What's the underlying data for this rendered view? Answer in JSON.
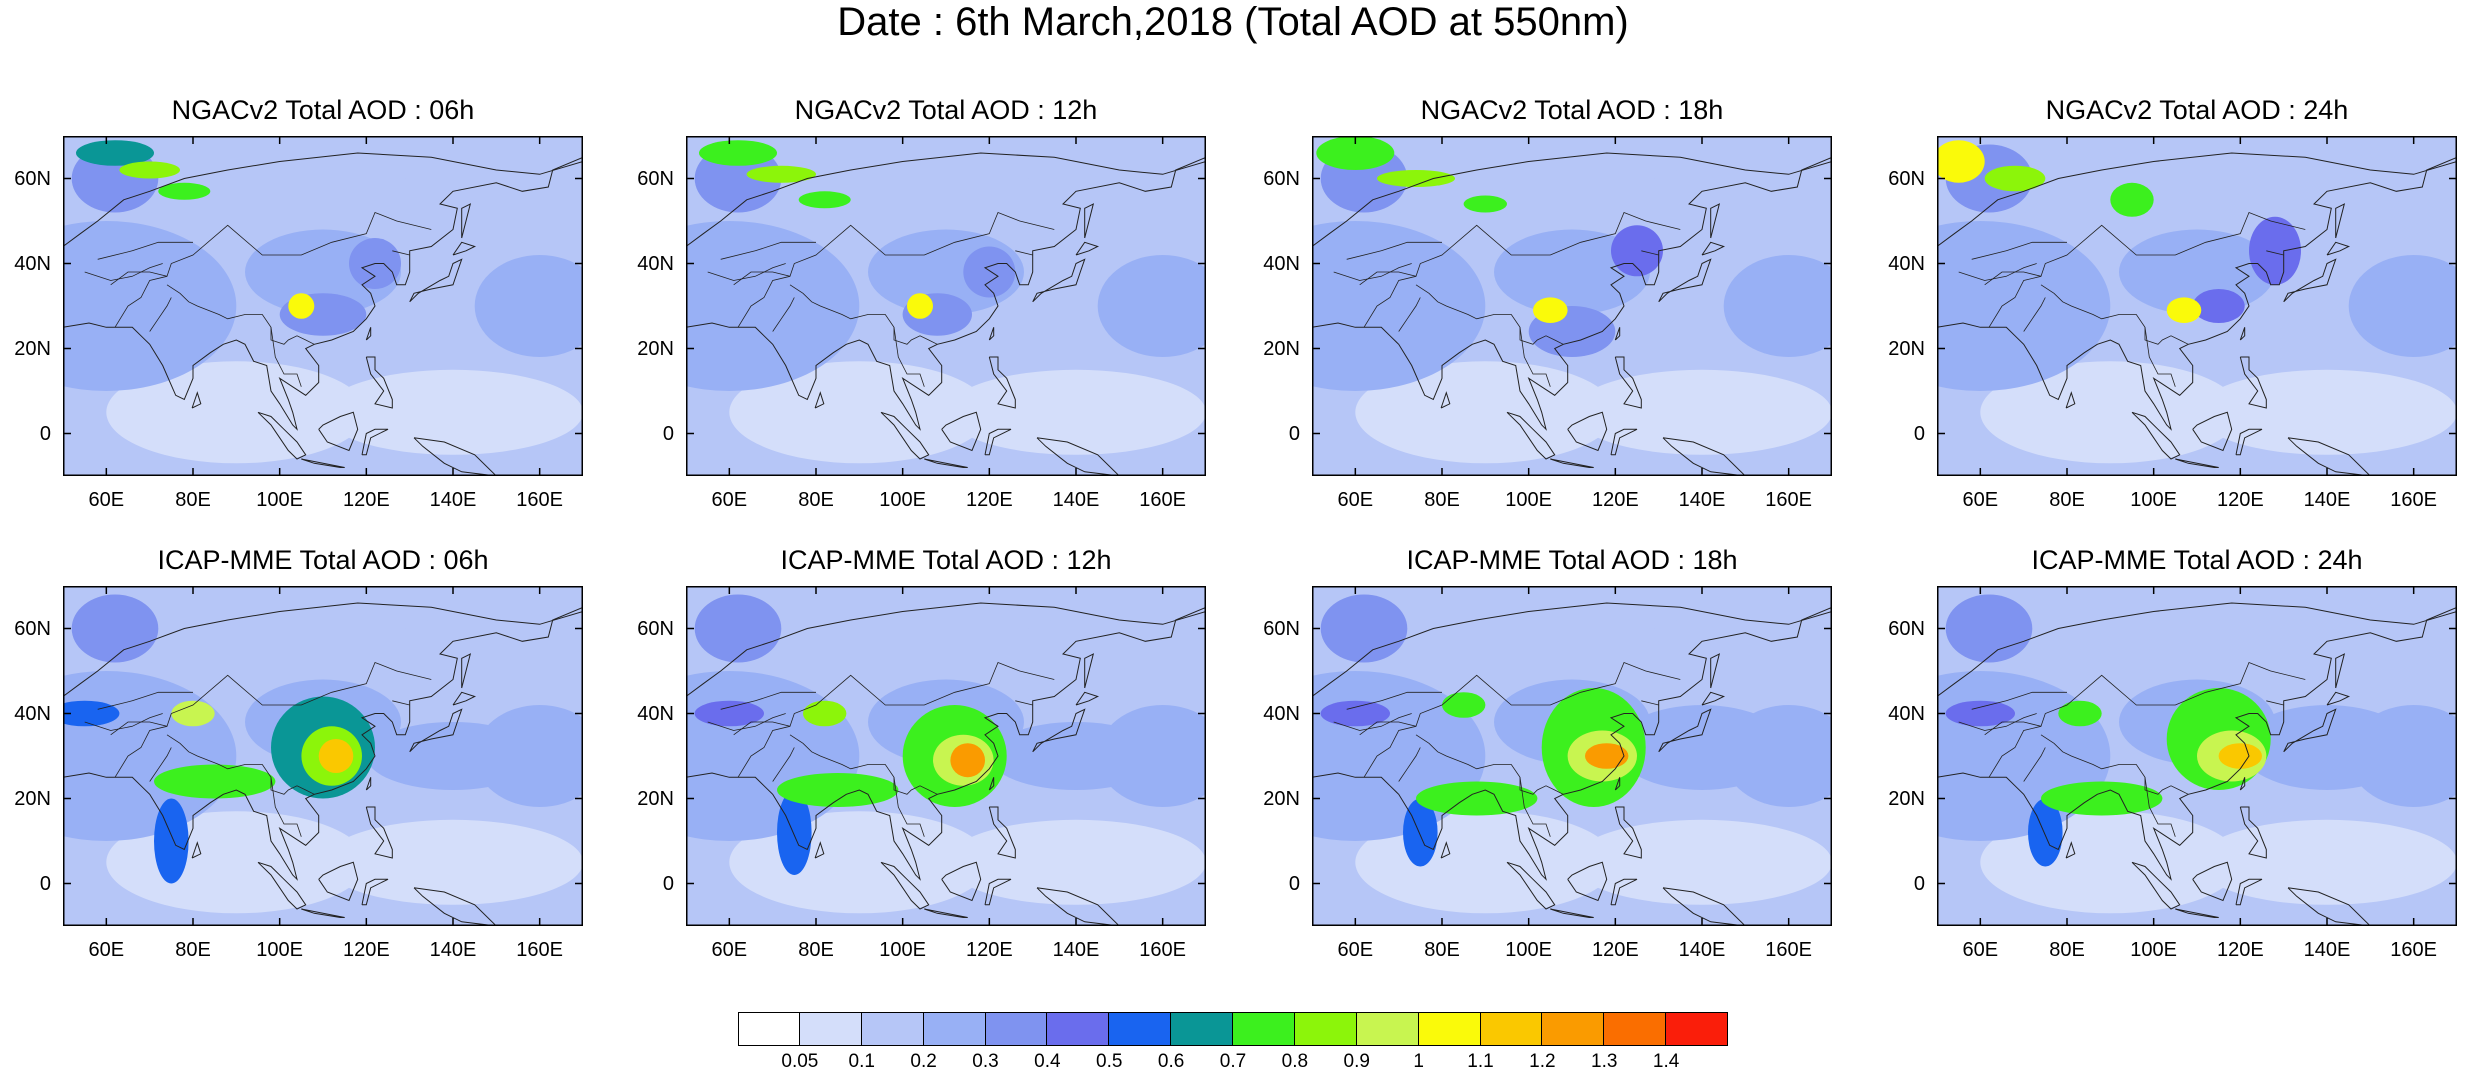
{
  "title": "Date : 6th March,2018 (Total AOD at 550nm)",
  "panels": [
    {
      "title": "NGACv2 Total AOD : 06h",
      "model": "NGACv2",
      "hour": "06h"
    },
    {
      "title": "NGACv2 Total AOD : 12h",
      "model": "NGACv2",
      "hour": "12h"
    },
    {
      "title": "NGACv2 Total AOD : 18h",
      "model": "NGACv2",
      "hour": "18h"
    },
    {
      "title": "NGACv2 Total AOD : 24h",
      "model": "NGACv2",
      "hour": "24h"
    },
    {
      "title": "ICAP-MME Total AOD : 06h",
      "model": "ICAP-MME",
      "hour": "06h"
    },
    {
      "title": "ICAP-MME Total AOD : 12h",
      "model": "ICAP-MME",
      "hour": "12h"
    },
    {
      "title": "ICAP-MME Total AOD : 18h",
      "model": "ICAP-MME",
      "hour": "18h"
    },
    {
      "title": "ICAP-MME Total AOD : 24h",
      "model": "ICAP-MME",
      "hour": "24h"
    }
  ],
  "axes": {
    "lat_labels": [
      "60N",
      "40N",
      "20N",
      "0"
    ],
    "lon_labels": [
      "60E",
      "80E",
      "100E",
      "120E",
      "140E",
      "160E"
    ],
    "lat_values": [
      60,
      40,
      20,
      0
    ],
    "lon_values": [
      60,
      80,
      100,
      120,
      140,
      160
    ],
    "lon_range": [
      50,
      170
    ],
    "lat_range": [
      -10,
      70
    ]
  },
  "colorbar": {
    "labels": [
      "0.05",
      "0.1",
      "0.2",
      "0.3",
      "0.4",
      "0.5",
      "0.6",
      "0.7",
      "0.8",
      "0.9",
      "1",
      "1.1",
      "1.2",
      "1.3",
      "1.4"
    ],
    "colors": [
      "#ffffff",
      "#d4defa",
      "#b6c6f7",
      "#98b0f5",
      "#7f93f0",
      "#6a6ded",
      "#1964f0",
      "#0a9696",
      "#3cf01e",
      "#8cf50a",
      "#c8f550",
      "#fafa0a",
      "#fac800",
      "#fa9b00",
      "#fa6e00",
      "#fa1e0a"
    ]
  }
}
